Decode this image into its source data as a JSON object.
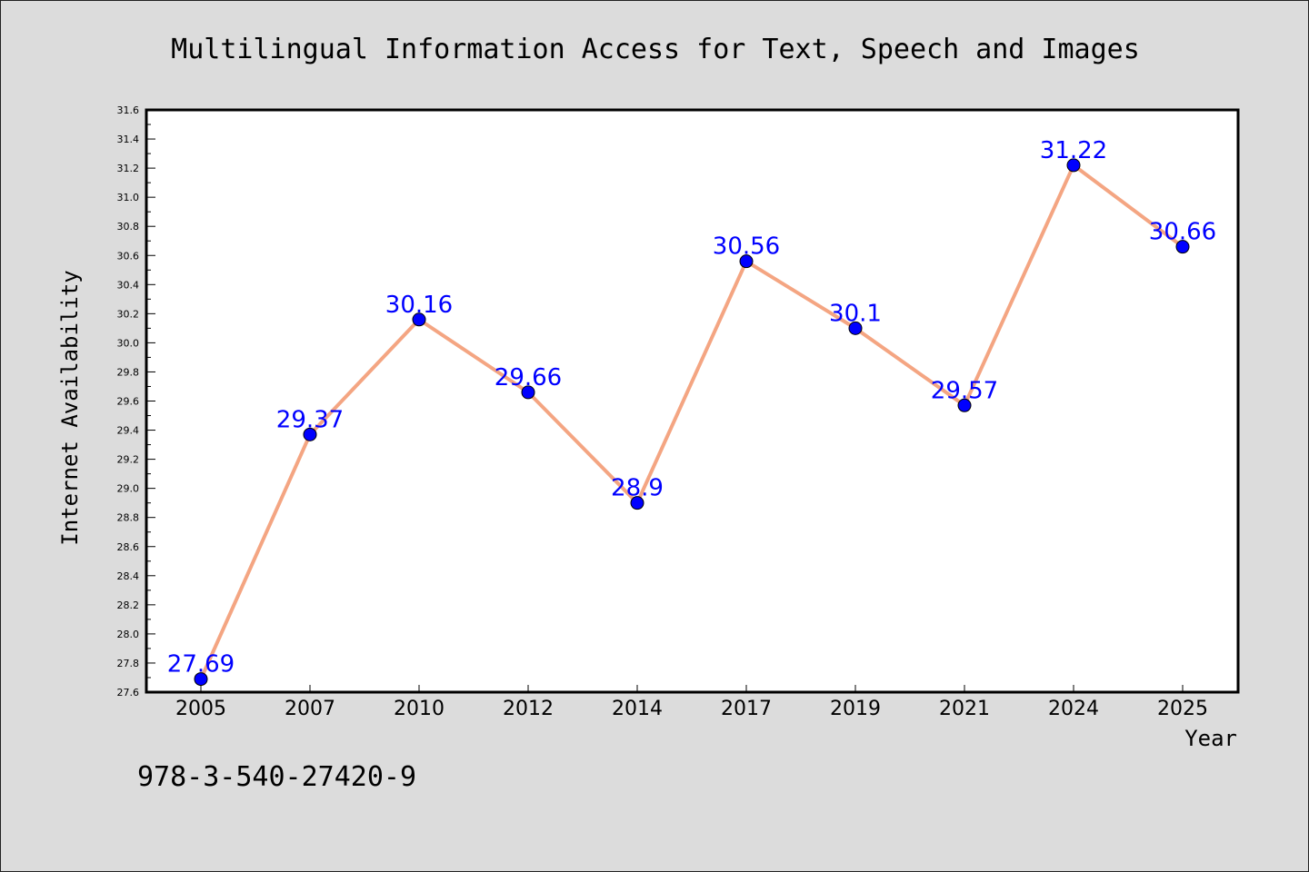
{
  "chart_data": {
    "type": "line",
    "title": "Multilingual Information Access for Text, Speech and Images",
    "xlabel": "Year",
    "ylabel": "Internet Availability",
    "categories": [
      "2005",
      "2007",
      "2010",
      "2012",
      "2014",
      "2017",
      "2019",
      "2021",
      "2024",
      "2025"
    ],
    "values": [
      27.69,
      29.37,
      30.16,
      29.66,
      28.9,
      30.56,
      30.1,
      29.57,
      31.22,
      30.66
    ],
    "data_labels": [
      "27.69",
      "29.37",
      "30.16",
      "29.66",
      "28.9",
      "30.56",
      "30.1",
      "29.57",
      "31.22",
      "30.66"
    ],
    "ylim": [
      27.6,
      31.6
    ],
    "yticks": [
      "27.6",
      "27.8",
      "28.0",
      "28.2",
      "28.4",
      "28.6",
      "28.8",
      "29.0",
      "29.2",
      "29.4",
      "29.6",
      "29.8",
      "30.0",
      "30.2",
      "30.4",
      "30.6",
      "30.8",
      "31.0",
      "31.2",
      "31.4",
      "31.6"
    ],
    "grid": false,
    "line_color": "#f4a582",
    "marker_color": "#0000ff",
    "label_color": "#0000ff",
    "background_color": "#dcdcdc",
    "plot_background_color": "#ffffff"
  },
  "footer": {
    "isbn": "978-3-540-27420-9"
  }
}
